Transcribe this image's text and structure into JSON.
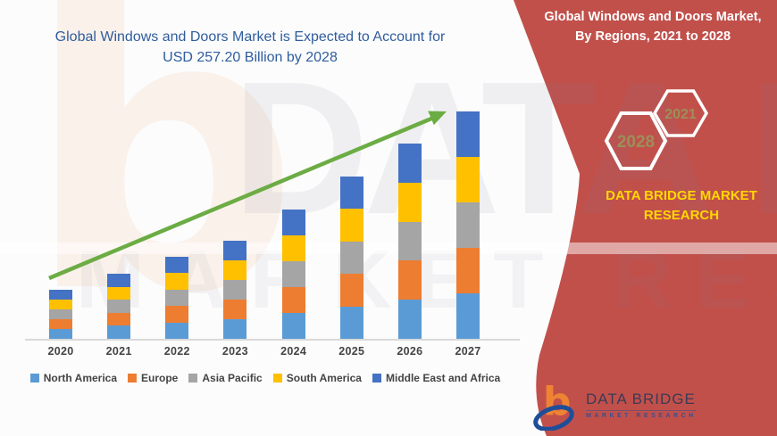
{
  "title": {
    "line1": "Global Windows and Doors Market is Expected to Account for",
    "line2": "USD 257.20 Billion by 2028"
  },
  "banner": {
    "heading_line1": "Global Windows and Doors Market,",
    "heading_line2": "By Regions, 2021 to 2028",
    "hex_large_label": "2028",
    "hex_small_label": "2021",
    "brand_line1": "DATA BRIDGE MARKET",
    "brand_line2": "RESEARCH"
  },
  "logo": {
    "title": "DATA BRIDGE",
    "subtitle": "MARKET RESEARCH"
  },
  "watermark": {
    "letter": "b",
    "row1": "DATA BRIDGE",
    "row2": "MARKET RESEARCH"
  },
  "colors": {
    "title_blue": "#2F5D9E",
    "banner_red": "#C1504B",
    "hex_border": "#FFFFFF",
    "hex_text": "#9D8F58",
    "brand_yellow": "#FFD800",
    "trend_green": "#6CAC44",
    "axis_text": "#444444",
    "baseline": "#D9D9D9",
    "logo_orange": "#EE8433",
    "logo_blue": "#1F4E99",
    "logo_text": "#3B3B55",
    "logo_sub": "#3D4E8A"
  },
  "chart_data": {
    "type": "bar",
    "stacked": true,
    "title": "Global Windows and Doors Market, By Regions, 2021 to 2028",
    "categories": [
      "2020",
      "2021",
      "2022",
      "2023",
      "2024",
      "2025",
      "2026",
      "2027"
    ],
    "series": [
      {
        "name": "North America",
        "color": "#5B9BD5",
        "values": [
          11,
          14.6,
          18.4,
          22,
          29,
          36.4,
          43.8,
          51
        ]
      },
      {
        "name": "Europe",
        "color": "#ED7D31",
        "values": [
          11,
          14.6,
          18.4,
          22,
          29,
          36.4,
          43.8,
          51
        ]
      },
      {
        "name": "Asia Pacific",
        "color": "#A5A5A5",
        "values": [
          11,
          14.6,
          18.4,
          22,
          29,
          36.4,
          43.8,
          51
        ]
      },
      {
        "name": "South America",
        "color": "#FFC000",
        "values": [
          11,
          14.6,
          18.4,
          22,
          29,
          36.4,
          43.8,
          51
        ]
      },
      {
        "name": "Middle East and Africa",
        "color": "#4472C4",
        "values": [
          11,
          14.6,
          18.4,
          22,
          29,
          36.4,
          43.8,
          51
        ]
      }
    ],
    "totals_estimated": [
      55,
      73,
      92,
      110,
      145,
      182,
      219,
      255
    ],
    "value_note": "No y-axis shown in source; values are relative estimates from bar heights (approx. USD Billion). Projection headline: USD 257.20 Billion by 2028.",
    "xlabel": "",
    "ylabel": "",
    "grid": false,
    "legend_position": "bottom",
    "trend_arrow": {
      "present": true,
      "color": "#6CAC44"
    }
  }
}
